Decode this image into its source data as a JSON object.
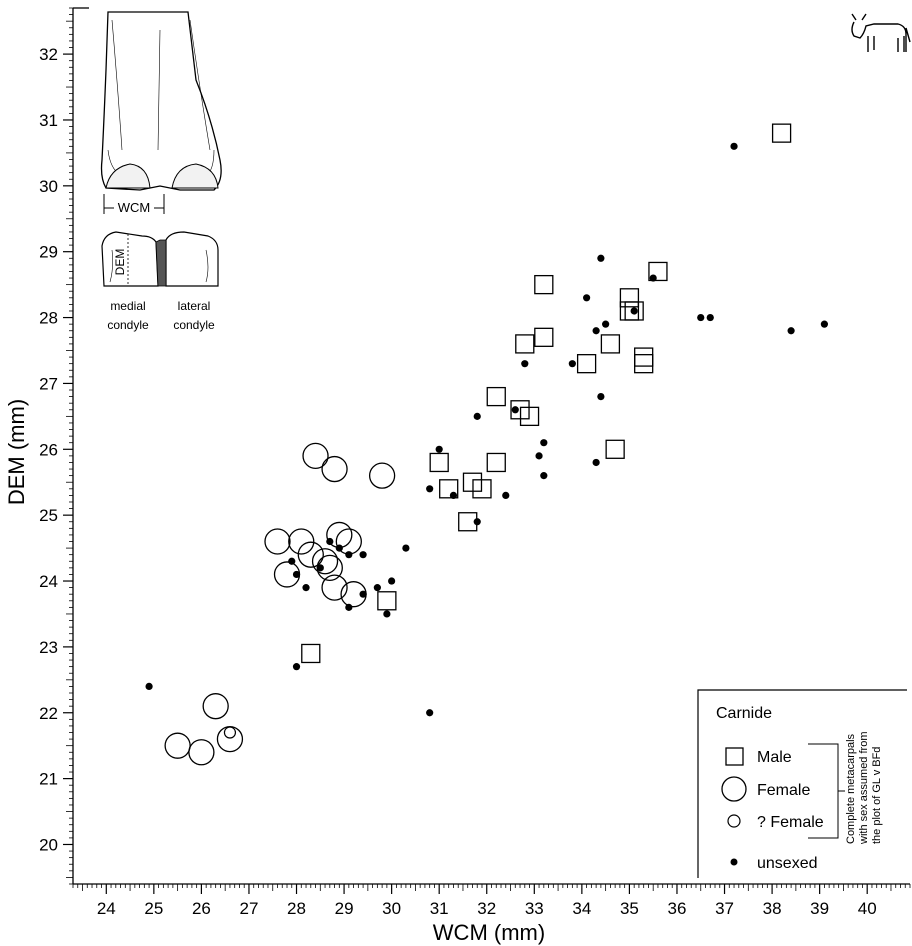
{
  "chart_data": {
    "type": "scatter",
    "xlabel": "WCM (mm)",
    "ylabel": "DEM (mm)",
    "xlim": [
      23.3,
      40.9
    ],
    "ylim": [
      19.4,
      32.7
    ],
    "x_ticks": [
      24,
      25,
      26,
      27,
      28,
      29,
      30,
      31,
      32,
      33,
      34,
      35,
      36,
      37,
      38,
      39,
      40
    ],
    "y_ticks": [
      20,
      21,
      22,
      23,
      24,
      25,
      26,
      27,
      28,
      29,
      30,
      31,
      32
    ],
    "grid": false,
    "legend_position": "bottom-right",
    "legend": {
      "title": "Carnide",
      "entries": [
        {
          "key": "male",
          "label": "Male"
        },
        {
          "key": "female",
          "label": "Female"
        },
        {
          "key": "qfemale",
          "label": "? Female"
        },
        {
          "key": "unsexed",
          "label": "unsexed"
        }
      ],
      "note_lines": [
        "Complete metacarpals",
        "with sex assumed from",
        "the plot of GL v BFd"
      ]
    },
    "inset": {
      "wcm_label": "WCM",
      "dem_label": "DEM",
      "medial_label": [
        "medial",
        "condyle"
      ],
      "lateral_label": [
        "lateral",
        "condyle"
      ]
    },
    "series": [
      {
        "key": "male",
        "name": "Male",
        "marker": "square",
        "x": [
          38.2,
          35.6,
          33.2,
          35.0,
          35.0,
          35.1,
          33.2,
          32.8,
          34.6,
          34.1,
          35.3,
          35.3,
          32.2,
          32.7,
          32.9,
          34.7,
          31.0,
          31.7,
          32.2,
          31.2,
          31.9,
          31.6,
          29.9,
          28.3
        ],
        "y": [
          30.8,
          28.7,
          28.5,
          28.3,
          28.1,
          28.1,
          27.7,
          27.6,
          27.6,
          27.3,
          27.4,
          27.3,
          26.8,
          26.6,
          26.5,
          26.0,
          25.8,
          25.5,
          25.8,
          25.4,
          25.4,
          24.9,
          23.7,
          22.9
        ]
      },
      {
        "key": "female",
        "name": "Female",
        "marker": "circle",
        "x": [
          28.4,
          28.8,
          29.8,
          27.6,
          28.1,
          28.9,
          29.1,
          28.3,
          28.6,
          28.7,
          27.8,
          28.8,
          29.2,
          26.3,
          26.6,
          25.5,
          26.0
        ],
        "y": [
          25.9,
          25.7,
          25.6,
          24.6,
          24.6,
          24.7,
          24.6,
          24.4,
          24.3,
          24.2,
          24.1,
          23.9,
          23.8,
          22.1,
          21.6,
          21.5,
          21.4
        ]
      },
      {
        "key": "qfemale",
        "name": "? Female",
        "marker": "small-circle",
        "x": [
          26.6
        ],
        "y": [
          21.7
        ]
      },
      {
        "key": "unsexed",
        "name": "unsexed",
        "marker": "dot",
        "x": [
          37.2,
          34.4,
          35.5,
          34.1,
          35.1,
          36.5,
          36.7,
          39.1,
          34.3,
          34.5,
          38.4,
          32.8,
          33.8,
          34.4,
          31.8,
          32.6,
          33.2,
          31.0,
          33.1,
          34.3,
          33.2,
          30.8,
          31.3,
          31.8,
          32.4,
          30.3,
          28.7,
          28.9,
          29.1,
          29.4,
          28.5,
          27.9,
          29.7,
          30.0,
          28.0,
          28.2,
          29.4,
          29.1,
          29.9,
          28.0,
          24.9,
          30.8
        ],
        "y": [
          30.6,
          28.9,
          28.6,
          28.3,
          28.1,
          28.0,
          28.0,
          27.9,
          27.8,
          27.9,
          27.8,
          27.3,
          27.3,
          26.8,
          26.5,
          26.6,
          26.1,
          26.0,
          25.9,
          25.8,
          25.6,
          25.4,
          25.3,
          24.9,
          25.3,
          24.5,
          24.6,
          24.5,
          24.4,
          24.4,
          24.2,
          24.3,
          23.9,
          24.0,
          24.1,
          23.9,
          23.8,
          23.6,
          23.5,
          22.7,
          22.4,
          22.0
        ]
      }
    ]
  }
}
